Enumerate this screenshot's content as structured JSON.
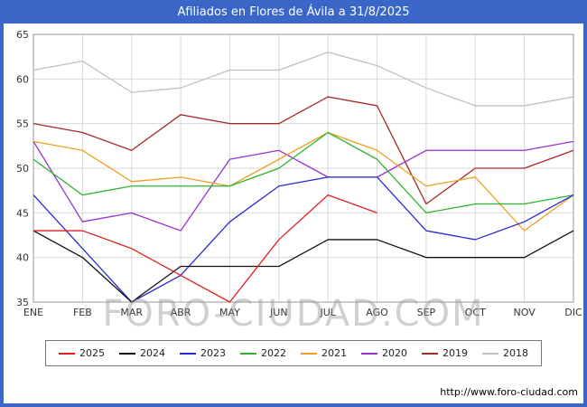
{
  "header": {
    "title": "Afiliados en Flores de Ávila a 31/8/2025"
  },
  "watermark": "FORO-CIUDAD.COM",
  "footer": {
    "url": "http://www.foro-ciudad.com"
  },
  "colors": {
    "frame": "#3A66C8",
    "grid": "#D8D8D8",
    "plot_border": "#999999"
  },
  "chart_data": {
    "type": "line",
    "title": "Afiliados en Flores de Ávila a 31/8/2025",
    "xlabel": "",
    "ylabel": "",
    "ylim": [
      35,
      65
    ],
    "yticks": [
      35,
      40,
      45,
      50,
      55,
      60,
      65
    ],
    "grid": true,
    "legend_position": "bottom",
    "categories": [
      "ENE",
      "FEB",
      "MAR",
      "ABR",
      "MAY",
      "JUN",
      "JUL",
      "AGO",
      "SEP",
      "OCT",
      "NOV",
      "DIC"
    ],
    "series": [
      {
        "name": "2025",
        "color": "#E02020",
        "values": [
          43,
          43,
          41,
          38,
          35,
          42,
          47,
          45
        ]
      },
      {
        "name": "2024",
        "color": "#111111",
        "values": [
          43,
          40,
          35,
          39,
          39,
          39,
          42,
          42,
          40,
          40,
          40,
          43
        ]
      },
      {
        "name": "2023",
        "color": "#2A2AD4",
        "values": [
          47,
          41,
          35,
          38,
          44,
          48,
          49,
          49,
          43,
          42,
          44,
          47
        ]
      },
      {
        "name": "2022",
        "color": "#2CB42C",
        "values": [
          51,
          47,
          48,
          48,
          48,
          50,
          54,
          51,
          45,
          46,
          46,
          47
        ]
      },
      {
        "name": "2021",
        "color": "#EFA020",
        "values": [
          53,
          52,
          48.5,
          49,
          48,
          51,
          54,
          52,
          48,
          49,
          43,
          47
        ]
      },
      {
        "name": "2020",
        "color": "#9932CC",
        "values": [
          53,
          44,
          45,
          43,
          51,
          52,
          49,
          49,
          52,
          52,
          52,
          53
        ]
      },
      {
        "name": "2019",
        "color": "#A52A2A",
        "values": [
          55,
          54,
          52,
          56,
          55,
          55,
          58,
          57,
          46,
          50,
          50,
          52
        ]
      },
      {
        "name": "2018",
        "color": "#C0C0C0",
        "values": [
          61,
          62,
          58.5,
          59,
          61,
          61,
          63,
          61.5,
          59,
          57,
          57,
          58
        ]
      }
    ]
  }
}
